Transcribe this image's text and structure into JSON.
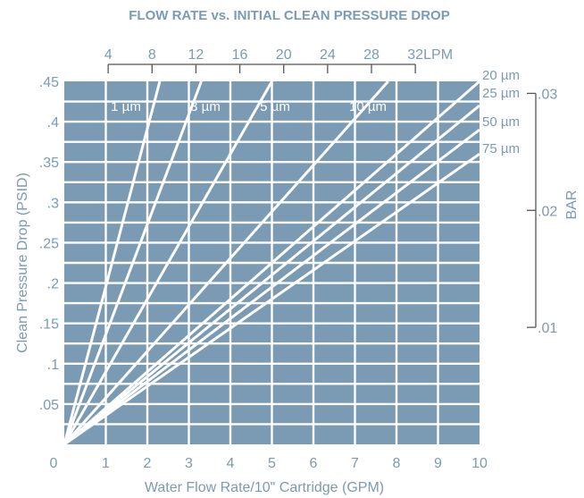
{
  "chart_data": {
    "type": "line",
    "title": "FLOW RATE vs. INITIAL CLEAN PRESSURE DROP",
    "xlabel": "Water Flow Rate/10\" Cartridge (GPM)",
    "ylabel": "Clean Pressure Drop (PSID)",
    "secondary_y_label": "BAR",
    "xlim": [
      0,
      10
    ],
    "ylim": [
      0,
      0.45
    ],
    "grid": true,
    "plot_background": "#7a9bb3",
    "text_color": "#7a9bb3",
    "line_color": "#ffffff",
    "x_ticks": [
      "0",
      "1",
      "2",
      "3",
      "4",
      "5",
      "6",
      "7",
      "8",
      "9",
      "10"
    ],
    "y_ticks": [
      ".05",
      ".1",
      ".15",
      ".2",
      ".25",
      ".3",
      ".35",
      ".4",
      ".45"
    ],
    "y_tick_values": [
      0.05,
      0.1,
      0.15,
      0.2,
      0.25,
      0.3,
      0.35,
      0.4,
      0.45
    ],
    "lpm_axis": {
      "unit": "LPM",
      "ticks": [
        "4",
        "8",
        "12",
        "16",
        "20",
        "24",
        "28",
        "32"
      ],
      "tick_values": [
        4,
        8,
        12,
        16,
        20,
        24,
        28,
        32
      ]
    },
    "bar_axis": {
      "ticks": [
        ".01",
        ".02",
        ".03"
      ],
      "tick_values": [
        0.01,
        0.02,
        0.03
      ]
    },
    "series": [
      {
        "name": "1 µm",
        "x": [
          0,
          2.3
        ],
        "y": [
          0,
          0.45
        ]
      },
      {
        "name": "3 µm",
        "x": [
          0,
          3.3
        ],
        "y": [
          0,
          0.45
        ]
      },
      {
        "name": "5 µm",
        "x": [
          0,
          5.0
        ],
        "y": [
          0,
          0.45
        ]
      },
      {
        "name": "10 µm",
        "x": [
          0,
          7.8
        ],
        "y": [
          0,
          0.45
        ]
      },
      {
        "name": "20 µm",
        "x": [
          0,
          10
        ],
        "y": [
          0,
          0.45
        ]
      },
      {
        "name": "25 µm",
        "x": [
          0,
          10
        ],
        "y": [
          0,
          0.42
        ]
      },
      {
        "name": "50 µm",
        "x": [
          0,
          10
        ],
        "y": [
          0,
          0.39
        ]
      },
      {
        "name": "75 µm",
        "x": [
          0,
          10
        ],
        "y": [
          0,
          0.36
        ]
      }
    ]
  }
}
